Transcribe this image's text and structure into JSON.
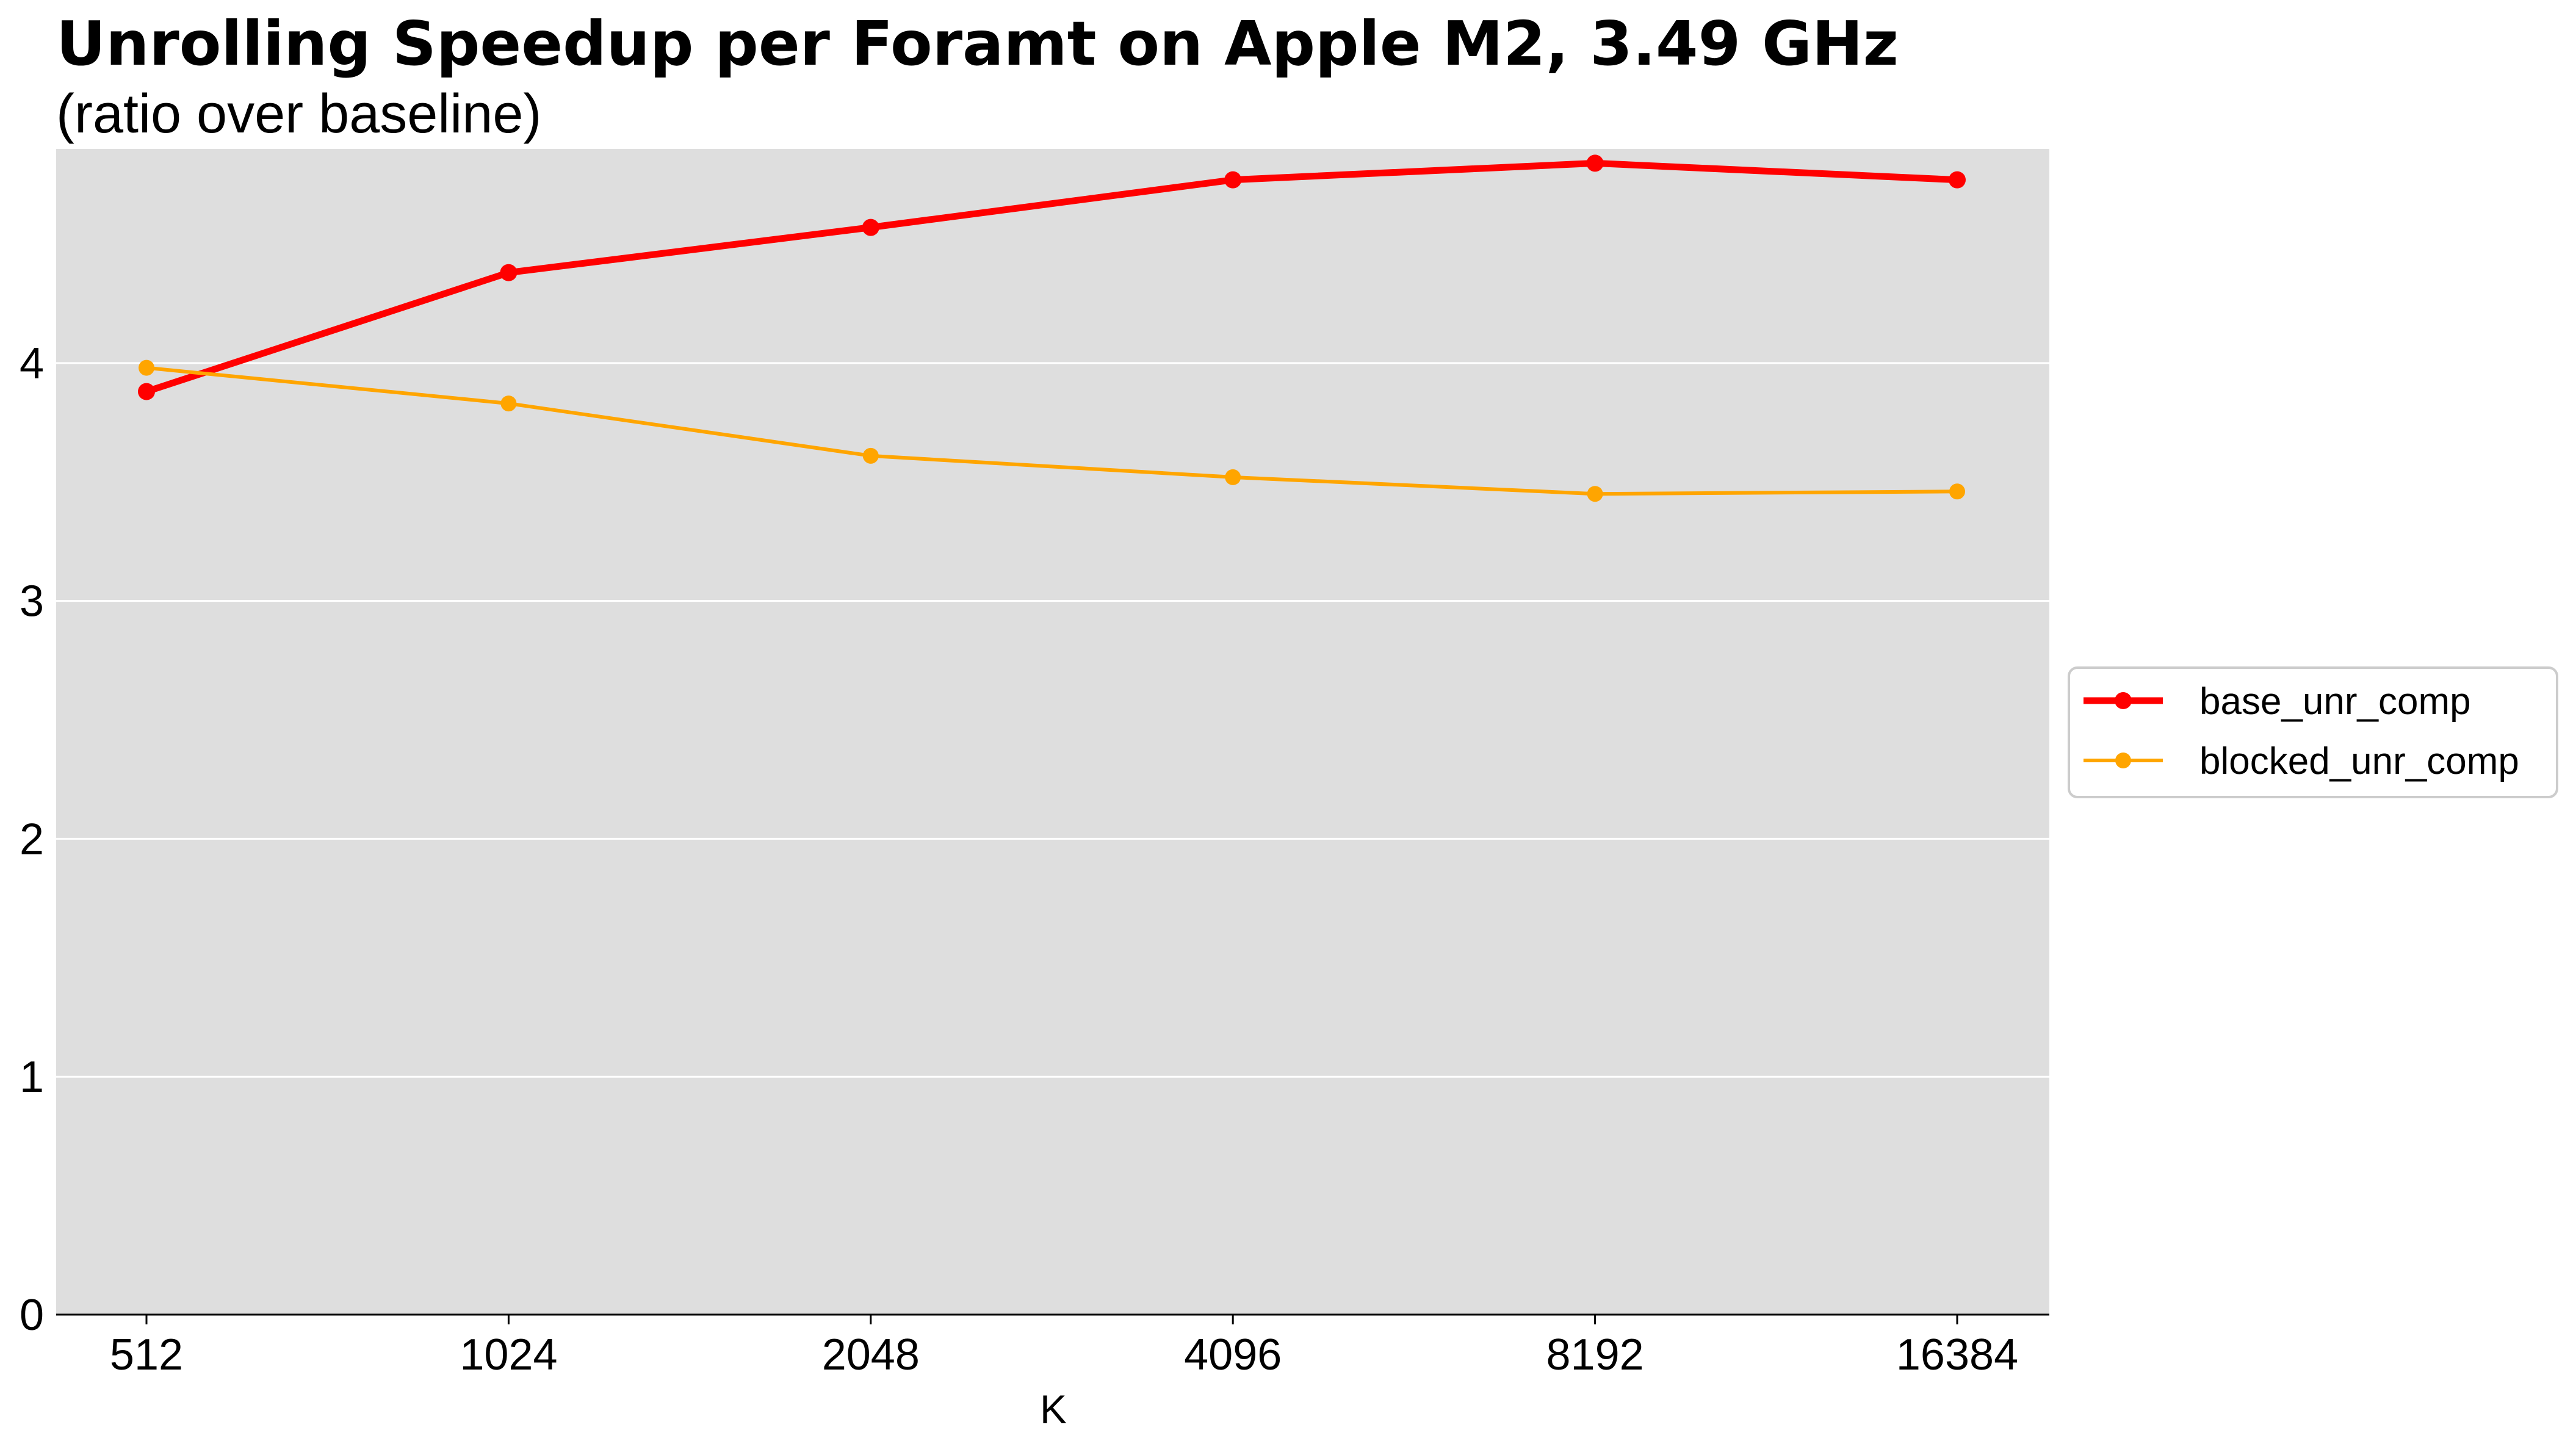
{
  "title": "Unrolling Speedup per Foramt on Apple M2,  3.49 GHz",
  "subtitle": "(ratio over baseline)",
  "chart_data": {
    "type": "line",
    "xlabel": "K",
    "ylabel": "",
    "categories": [
      "512",
      "1024",
      "2048",
      "4096",
      "8192",
      "16384"
    ],
    "ylim": [
      0,
      4.9
    ],
    "yticks": [
      0,
      1,
      2,
      3,
      4
    ],
    "grid": true,
    "legend_position": "right",
    "background": "#dedede",
    "series": [
      {
        "name": "base_unr_comp",
        "color": "#ff0000",
        "values": [
          3.88,
          4.38,
          4.57,
          4.77,
          4.84,
          4.77
        ]
      },
      {
        "name": "blocked_unr_comp",
        "color": "#ffa500",
        "values": [
          3.98,
          3.83,
          3.61,
          3.52,
          3.45,
          3.46
        ]
      }
    ]
  }
}
